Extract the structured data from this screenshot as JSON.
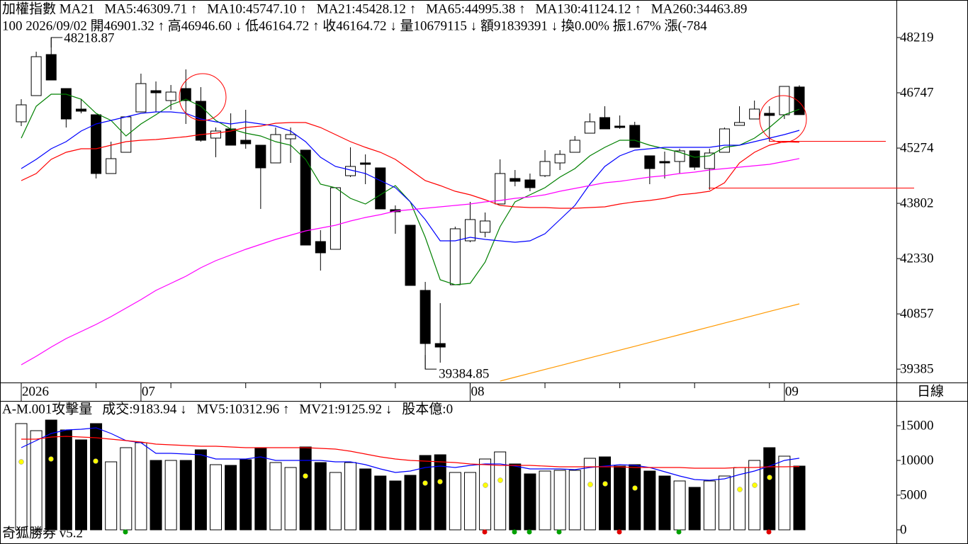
{
  "chart_data": [
    {
      "type": "candlestick",
      "title": "加權指數 MA21",
      "subtitle": "100 2026/09/02 開46901.32 ↑ 高46946.60 ↓ 低46164.72 ↑ 收46164.72 ↓ 量10679115 ↓ 額91839391 ↓ 換0.00% 振1.67% 漲(-784",
      "period_label": "日線",
      "categories": [
        "2026",
        null,
        null,
        null,
        null,
        null,
        null,
        null,
        "07",
        null,
        null,
        null,
        null,
        null,
        null,
        null,
        null,
        null,
        null,
        null,
        null,
        null,
        null,
        null,
        null,
        null,
        null,
        null,
        null,
        null,
        "08",
        null,
        null,
        null,
        null,
        null,
        null,
        null,
        null,
        null,
        null,
        null,
        null,
        null,
        null,
        null,
        null,
        null,
        null,
        null,
        null,
        "09",
        null
      ],
      "open": [
        45974,
        46672,
        47766,
        46860,
        46313,
        46162,
        44596,
        45162,
        46238,
        46804,
        46540,
        46860,
        46521,
        45540,
        45785,
        45483,
        45351,
        44879,
        45521,
        45219,
        42784,
        42577,
        44539,
        44879,
        44747,
        43634,
        43219,
        41483,
        40067,
        41633,
        42803,
        43030,
        43785,
        44464,
        44426,
        44539,
        44879,
        45162,
        45671,
        46087,
        45860,
        45879,
        45068,
        44917,
        44917,
        45200,
        44728,
        45162,
        45879,
        46049,
        46200,
        46162,
        46901.32
      ],
      "high": [
        46577,
        47842,
        48218.87,
        46860,
        46577,
        46162,
        45445,
        46106,
        47257,
        47049,
        46955,
        47370,
        46898,
        45822,
        46200,
        46294,
        45351,
        45822,
        45822,
        45219,
        43086,
        44219,
        45294,
        45106,
        44747,
        43747,
        43219,
        41709,
        41143,
        43181,
        43841,
        43558,
        44973,
        44690,
        44596,
        45219,
        45219,
        45596,
        46200,
        46389,
        46143,
        45974,
        45068,
        45181,
        45256,
        45200,
        45256,
        45822,
        46389,
        46540,
        46389,
        46917,
        46946.6
      ],
      "low": [
        45860,
        46672,
        47087,
        45822,
        46200,
        44464,
        44596,
        45162,
        46238,
        46238,
        46294,
        45917,
        45445,
        45030,
        45351,
        45256,
        43653,
        44879,
        44879,
        42690,
        42011,
        42577,
        44502,
        44313,
        43653,
        42992,
        41615,
        39384.85,
        39558,
        41633,
        42766,
        42898,
        43785,
        44256,
        44124,
        44502,
        44690,
        45162,
        45671,
        45785,
        45785,
        45294,
        44313,
        44464,
        44596,
        44690,
        44162,
        45162,
        45879,
        46049,
        45445,
        46049,
        46164.72
      ],
      "close": [
        46426,
        47709,
        47087,
        46049,
        46257,
        44596,
        44992,
        46106,
        46992,
        46747,
        46766,
        46540,
        45483,
        45728,
        45351,
        45389,
        44747,
        45634,
        45634,
        42690,
        42483,
        44219,
        44785,
        44841,
        43653,
        43577,
        41615,
        40067,
        39973,
        43124,
        43370,
        43332,
        44596,
        44389,
        44219,
        44917,
        45106,
        45483,
        45974,
        45785,
        45822,
        45294,
        44728,
        44879,
        45200,
        44766,
        45143,
        45785,
        45955,
        46313,
        46143,
        46917,
        46164.72
      ],
      "series": [
        {
          "name": "MA5:46309.71 ↑",
          "color": "#008000",
          "values": [
            45539,
            46389,
            46709,
            46709,
            46577,
            46200,
            46011,
            45596,
            45917,
            46162,
            46426,
            46577,
            46389,
            46011,
            45785,
            45672,
            45596,
            45445,
            45351,
            44973,
            44313,
            44219,
            43936,
            43785,
            44030,
            44275,
            43841,
            42898,
            41765,
            41633,
            41671,
            42237,
            43181,
            43841,
            44030,
            44219,
            44502,
            44728,
            45068,
            45294,
            45483,
            45483,
            45351,
            45256,
            45162,
            45030,
            45068,
            45294,
            45351,
            45539,
            45823,
            46162,
            46309.71
          ]
        },
        {
          "name": "MA10:45747.10 ↑",
          "color": "#0000ff",
          "values": [
            44728,
            44973,
            45256,
            45445,
            45728,
            45917,
            46011,
            46106,
            46200,
            46238,
            46238,
            46200,
            46049,
            45973,
            45917,
            45973,
            45917,
            45860,
            45728,
            45445,
            45030,
            44785,
            44690,
            44596,
            44407,
            44219,
            43841,
            43369,
            42803,
            42803,
            42898,
            42841,
            42803,
            42766,
            42803,
            42992,
            43369,
            43747,
            44313,
            44785,
            45068,
            45219,
            45256,
            45294,
            45294,
            45294,
            45294,
            45351,
            45351,
            45445,
            45539,
            45634,
            45747.1
          ]
        },
        {
          "name": "MA21:45428.12 ↑",
          "color": "#ff0000",
          "values": [
            44407,
            44596,
            44973,
            45162,
            45256,
            45256,
            45351,
            45445,
            45483,
            45502,
            45539,
            45577,
            45634,
            45672,
            45728,
            45823,
            45860,
            45936,
            45955,
            45955,
            45823,
            45634,
            45445,
            45294,
            45162,
            44973,
            44690,
            44407,
            44275,
            44124,
            44030,
            43898,
            43747,
            43709,
            43690,
            43690,
            43671,
            43671,
            43690,
            43709,
            43785,
            43841,
            43879,
            43936,
            44030,
            44068,
            44124,
            44351,
            44879,
            45162,
            45351,
            45445,
            45428.12
          ]
        },
        {
          "name": "MA65:44995.38 ↑",
          "color": "#ff00ff",
          "values": [
            39501,
            39727,
            39973,
            40199,
            40388,
            40577,
            40784,
            41011,
            41237,
            41482,
            41671,
            41860,
            42086,
            42275,
            42426,
            42577,
            42709,
            42841,
            42954,
            43067,
            43143,
            43218,
            43332,
            43426,
            43501,
            43596,
            43634,
            43671,
            43709,
            43747,
            43785,
            43841,
            43879,
            43936,
            43973,
            44030,
            44124,
            44200,
            44275,
            44351,
            44388,
            44445,
            44502,
            44539,
            44596,
            44634,
            44690,
            44728,
            44766,
            44804,
            44841,
            44917,
            44995.38
          ]
        },
        {
          "name": "MA130:41124.12 ↑",
          "color": "#ff9900",
          "values": [
            null,
            null,
            null,
            null,
            null,
            null,
            null,
            null,
            null,
            null,
            null,
            null,
            null,
            null,
            null,
            null,
            null,
            null,
            null,
            null,
            null,
            null,
            null,
            null,
            null,
            null,
            null,
            null,
            null,
            null,
            null,
            null,
            39067,
            39170,
            39273,
            39376,
            39479,
            39582,
            39685,
            39788,
            39891,
            39994,
            40097,
            40200,
            40303,
            40406,
            40509,
            40612,
            40715,
            40818,
            40921,
            41024,
            41124.12
          ]
        },
        {
          "name": "MA260:34463.89",
          "color": "#006400"
        }
      ],
      "ylim": [
        39029,
        49219
      ],
      "yticks": [
        48219,
        46747,
        45274,
        43802,
        42330,
        40857,
        39385
      ],
      "up_color": "#ffffff",
      "down_color": "#000000"
    },
    {
      "type": "bar",
      "title": "A-M.001攻擊量",
      "value_name": "成交:9183.94 ↓",
      "value_name_color": "#008000",
      "note": "股本億:0",
      "note_color": "#ff00ff",
      "values": [
        15306,
        14286,
        15816,
        14388,
        12959,
        15306,
        9796,
        11837,
        12551,
        10000,
        10000,
        10000,
        11531,
        9388,
        9286,
        10102,
        11735,
        9694,
        8980,
        11939,
        9694,
        8265,
        9694,
        8776,
        7755,
        7041,
        7857,
        10714,
        10816,
        8265,
        8265,
        10204,
        11224,
        9490,
        8061,
        8469,
        8571,
        8571,
        10306,
        10510,
        9184,
        9388,
        8469,
        7755,
        7041,
        6122,
        7041,
        7755,
        8980,
        10000,
        11837,
        10612,
        9183.94
      ],
      "series": [
        {
          "name": "MV5:10312.96 ↑",
          "color": "#0000ff",
          "values": [
            11837,
            12857,
            13878,
            14388,
            14490,
            14694,
            13878,
            12857,
            12551,
            11020,
            11020,
            10918,
            10816,
            10204,
            10204,
            10204,
            10510,
            10000,
            10000,
            10000,
            10000,
            9796,
            9796,
            9388,
            8776,
            8265,
            8469,
            8980,
            9184,
            8980,
            9286,
            9490,
            9490,
            9184,
            8776,
            8776,
            8776,
            8673,
            8980,
            9184,
            9388,
            9286,
            8980,
            8367,
            7755,
            7245,
            7143,
            7347,
            7959,
            8469,
            9184,
            10000,
            10312.96
          ]
        },
        {
          "name": "MV21:9125.92 ↓",
          "color": "#ff0000",
          "values": [
            13061,
            13061,
            13367,
            13469,
            13367,
            13265,
            13061,
            12857,
            12653,
            12347,
            12245,
            12143,
            12041,
            12041,
            11939,
            11837,
            11837,
            11837,
            11837,
            11837,
            11735,
            11633,
            11327,
            10918,
            10510,
            10204,
            10000,
            9898,
            9796,
            9694,
            9490,
            9388,
            9286,
            9286,
            9286,
            9184,
            9082,
            9082,
            9082,
            9082,
            9082,
            8980,
            8980,
            8980,
            8980,
            8878,
            8878,
            8878,
            8980,
            8980,
            9082,
            9082,
            9125.92
          ]
        }
      ],
      "ylim": [
        0,
        18469
      ],
      "yticks": [
        15000,
        10000,
        5000,
        0
      ]
    }
  ],
  "footer": "奇狐勝券 v5.2"
}
